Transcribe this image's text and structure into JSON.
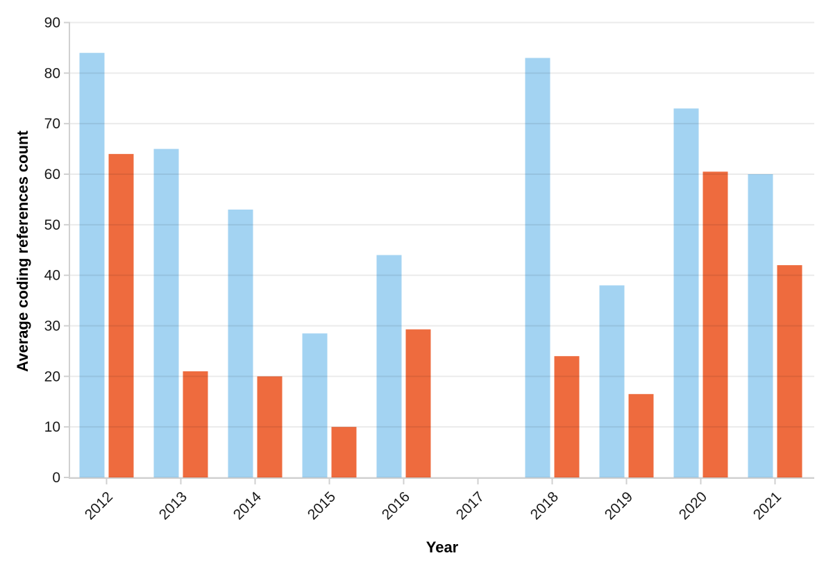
{
  "chart_data": {
    "type": "bar",
    "title": "",
    "xlabel": "Year",
    "ylabel": "Average coding references count",
    "categories": [
      "2012",
      "2013",
      "2014",
      "2015",
      "2016",
      "2017",
      "2018",
      "2019",
      "2020",
      "2021"
    ],
    "series": [
      {
        "name": "blue",
        "color": "#a3d3f2",
        "values": [
          84,
          65,
          53,
          28.5,
          44,
          null,
          83,
          38,
          73,
          60
        ]
      },
      {
        "name": "orange",
        "color": "#ee6b3e",
        "values": [
          64,
          21,
          20,
          10,
          29.3,
          null,
          24,
          16.5,
          60.5,
          42
        ]
      }
    ],
    "ylim": [
      0,
      90
    ],
    "y_ticks": [
      0,
      10,
      20,
      30,
      40,
      50,
      60,
      70,
      80,
      90
    ],
    "grid": true,
    "legend_position": "none",
    "grid_color": "rgba(0,0,0,0.08)",
    "axis_line_color": "#d0d0d0",
    "tick_label_color": "#1a1a1a",
    "background": "#ffffff"
  }
}
